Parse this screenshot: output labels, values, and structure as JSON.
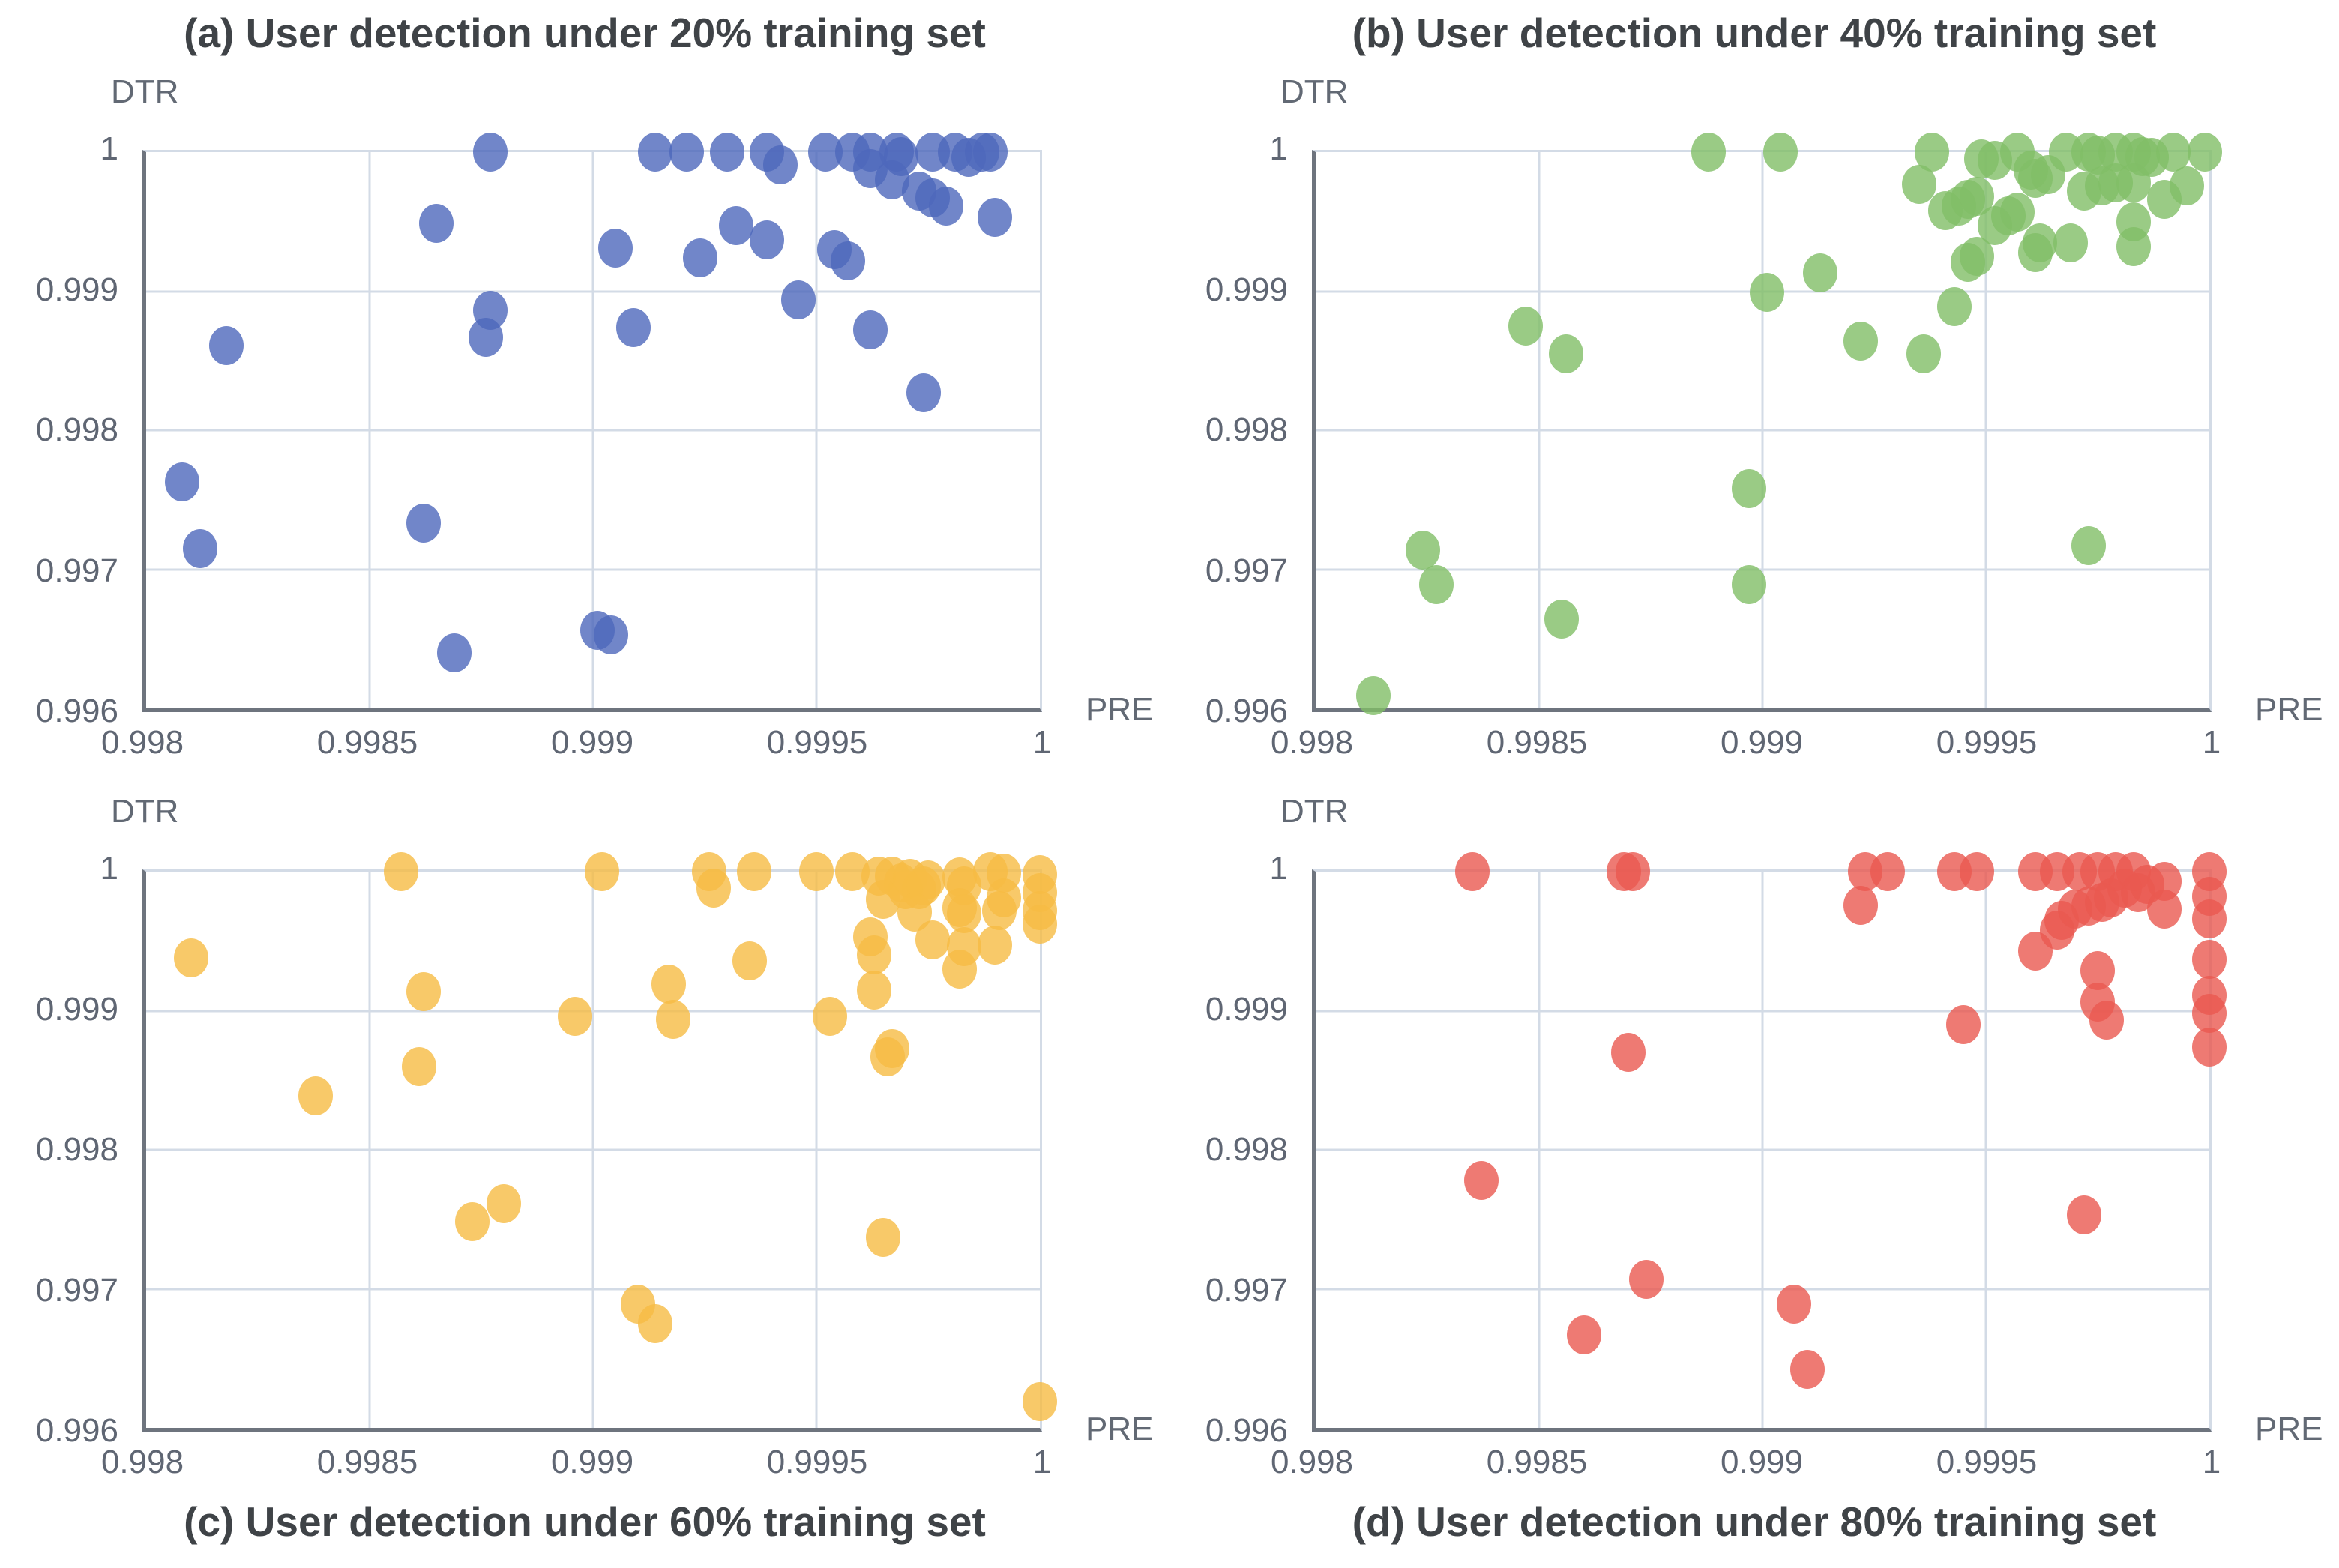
{
  "figure": {
    "background": "#FFFFFF",
    "styles": {
      "grid_color": "#D3DBE6",
      "axis_color": "#6E747E",
      "tick_text_color": "#5F6673",
      "title_text_color": "#3F4347",
      "axis_label_color": "#626974"
    }
  },
  "chart_data": [
    {
      "id": "a",
      "type": "scatter",
      "title": "(a) User detection under 20% training set",
      "xlabel": "PRE",
      "ylabel": "DTR",
      "xlim": [
        0.998,
        1.0
      ],
      "ylim": [
        0.996,
        1.0
      ],
      "x_ticks": [
        "0.998",
        "0.9985",
        "0.999",
        "0.9995",
        "1"
      ],
      "y_ticks": [
        "1",
        "0.999",
        "0.998",
        "0.997",
        "0.996"
      ],
      "grid": true,
      "legend": "none",
      "color": "#4D68BB",
      "points": [
        [
          0.99877,
          1.0
        ],
        [
          0.99914,
          1.0
        ],
        [
          0.99921,
          1.0
        ],
        [
          0.9993,
          1.0
        ],
        [
          0.99939,
          1.0
        ],
        [
          0.99952,
          1.0
        ],
        [
          0.99958,
          1.0
        ],
        [
          0.99962,
          1.0
        ],
        [
          0.99968,
          1.0
        ],
        [
          0.99976,
          1.0
        ],
        [
          0.99981,
          1.0
        ],
        [
          0.99987,
          1.0
        ],
        [
          0.99989,
          1.0
        ],
        [
          0.99942,
          0.99991
        ],
        [
          0.99969,
          0.99997
        ],
        [
          0.99984,
          0.99996
        ],
        [
          0.99962,
          0.99988
        ],
        [
          0.99967,
          0.9998
        ],
        [
          0.99973,
          0.99972
        ],
        [
          0.99976,
          0.99967
        ],
        [
          0.99979,
          0.99961
        ],
        [
          0.9999,
          0.99953
        ],
        [
          0.99865,
          0.99949
        ],
        [
          0.99905,
          0.99931
        ],
        [
          0.99924,
          0.99924
        ],
        [
          0.99932,
          0.99947
        ],
        [
          0.99939,
          0.99937
        ],
        [
          0.99954,
          0.9993
        ],
        [
          0.99957,
          0.99922
        ],
        [
          0.99946,
          0.99894
        ],
        [
          0.99877,
          0.99886
        ],
        [
          0.99876,
          0.99867
        ],
        [
          0.99909,
          0.99874
        ],
        [
          0.99962,
          0.99872
        ],
        [
          0.99818,
          0.99861
        ],
        [
          0.99974,
          0.99827
        ],
        [
          0.99808,
          0.99763
        ],
        [
          0.99862,
          0.99733
        ],
        [
          0.99812,
          0.99715
        ],
        [
          0.99901,
          0.99656
        ],
        [
          0.99904,
          0.99653
        ],
        [
          0.99869,
          0.9964
        ]
      ]
    },
    {
      "id": "b",
      "type": "scatter",
      "title": "(b) User detection under 40% training set",
      "xlabel": "PRE",
      "ylabel": "DTR",
      "xlim": [
        0.998,
        1.0
      ],
      "ylim": [
        0.996,
        1.0
      ],
      "x_ticks": [
        "0.998",
        "0.9985",
        "0.999",
        "0.9995",
        "1"
      ],
      "y_ticks": [
        "1",
        "0.999",
        "0.998",
        "0.997",
        "0.996"
      ],
      "grid": true,
      "legend": "none",
      "color": "#81BE67",
      "points": [
        [
          0.99888,
          1.0
        ],
        [
          0.99904,
          1.0
        ],
        [
          0.99938,
          1.0
        ],
        [
          0.99957,
          1.0
        ],
        [
          0.99968,
          1.0
        ],
        [
          0.99973,
          1.0
        ],
        [
          0.99979,
          1.0
        ],
        [
          0.99983,
          1.0
        ],
        [
          0.99992,
          1.0
        ],
        [
          0.99999,
          1.0
        ],
        [
          0.99949,
          0.99995
        ],
        [
          0.99952,
          0.99994
        ],
        [
          0.99975,
          0.99998
        ],
        [
          0.99985,
          0.99997
        ],
        [
          0.99987,
          0.99996
        ],
        [
          0.9996,
          0.99987
        ],
        [
          0.99961,
          0.99981
        ],
        [
          0.99964,
          0.99984
        ],
        [
          0.99972,
          0.99972
        ],
        [
          0.99976,
          0.99976
        ],
        [
          0.99979,
          0.99978
        ],
        [
          0.99983,
          0.99978
        ],
        [
          0.9999,
          0.99966
        ],
        [
          0.99995,
          0.99976
        ],
        [
          0.99946,
          0.99966
        ],
        [
          0.99948,
          0.99968
        ],
        [
          0.99957,
          0.99957
        ],
        [
          0.99952,
          0.99947
        ],
        [
          0.99955,
          0.99954
        ],
        [
          0.99948,
          0.99925
        ],
        [
          0.99962,
          0.99935
        ],
        [
          0.99961,
          0.99928
        ],
        [
          0.99969,
          0.99935
        ],
        [
          0.99983,
          0.9995
        ],
        [
          0.99983,
          0.99932
        ],
        [
          0.99935,
          0.99977
        ],
        [
          0.99941,
          0.99958
        ],
        [
          0.99944,
          0.99961
        ],
        [
          0.99946,
          0.99921
        ],
        [
          0.99913,
          0.99913
        ],
        [
          0.99901,
          0.99899
        ],
        [
          0.99943,
          0.99889
        ],
        [
          0.99847,
          0.99875
        ],
        [
          0.99856,
          0.99855
        ],
        [
          0.99922,
          0.99864
        ],
        [
          0.99936,
          0.99855
        ],
        [
          0.99897,
          0.99758
        ],
        [
          0.99824,
          0.99714
        ],
        [
          0.99827,
          0.99689
        ],
        [
          0.99897,
          0.99689
        ],
        [
          0.99855,
          0.99664
        ],
        [
          0.99973,
          0.99717
        ],
        [
          0.99813,
          0.99609
        ]
      ]
    },
    {
      "id": "c",
      "type": "scatter",
      "title": "(c) User detection under 60% training set",
      "xlabel": "PRE",
      "ylabel": "DTR",
      "xlim": [
        0.998,
        1.0
      ],
      "ylim": [
        0.996,
        1.0
      ],
      "x_ticks": [
        "0.998",
        "0.9985",
        "0.999",
        "0.9995",
        "1"
      ],
      "y_ticks": [
        "1",
        "0.999",
        "0.998",
        "0.997",
        "0.996"
      ],
      "grid": true,
      "legend": "none",
      "color": "#F6BC44",
      "points": [
        [
          0.99857,
          1.0
        ],
        [
          0.99902,
          1.0
        ],
        [
          0.99926,
          1.0
        ],
        [
          0.99936,
          1.0
        ],
        [
          0.9995,
          1.0
        ],
        [
          0.99958,
          1.0
        ],
        [
          0.99964,
          0.99997
        ],
        [
          0.99967,
          0.99997
        ],
        [
          0.99971,
          0.99995
        ],
        [
          0.99975,
          0.99994
        ],
        [
          0.99982,
          0.99996
        ],
        [
          0.99989,
          1.0
        ],
        [
          0.99992,
          0.99999
        ],
        [
          1.0,
          0.99998
        ],
        [
          0.99927,
          0.99988
        ],
        [
          0.99969,
          0.99992
        ],
        [
          0.9997,
          0.99987
        ],
        [
          0.99973,
          0.99987
        ],
        [
          0.99974,
          0.9999
        ],
        [
          0.99983,
          0.9999
        ],
        [
          1.0,
          0.99985
        ],
        [
          0.99965,
          0.9998
        ],
        [
          0.99972,
          0.99971
        ],
        [
          0.99982,
          0.99974
        ],
        [
          0.99983,
          0.9997
        ],
        [
          0.99992,
          0.99981
        ],
        [
          0.99991,
          0.99972
        ],
        [
          1.0,
          0.99972
        ],
        [
          1.0,
          0.99962
        ],
        [
          0.99962,
          0.99953
        ],
        [
          0.99963,
          0.9994
        ],
        [
          0.99976,
          0.99951
        ],
        [
          0.99983,
          0.99946
        ],
        [
          0.9999,
          0.99947
        ],
        [
          0.99982,
          0.9993
        ],
        [
          0.99963,
          0.99915
        ],
        [
          0.9981,
          0.99938
        ],
        [
          0.99935,
          0.99936
        ],
        [
          0.99917,
          0.99919
        ],
        [
          0.99862,
          0.99914
        ],
        [
          0.99896,
          0.99896
        ],
        [
          0.99918,
          0.99894
        ],
        [
          0.99953,
          0.99896
        ],
        [
          0.99967,
          0.99873
        ],
        [
          0.99966,
          0.99867
        ],
        [
          0.99861,
          0.9986
        ],
        [
          0.99838,
          0.99839
        ],
        [
          0.9988,
          0.99761
        ],
        [
          0.99873,
          0.99748
        ],
        [
          0.99965,
          0.99737
        ],
        [
          0.9991,
          0.99689
        ],
        [
          0.99914,
          0.99675
        ],
        [
          1.0,
          0.99619
        ]
      ]
    },
    {
      "id": "d",
      "type": "scatter",
      "title": "(d) User detection under 80% training set",
      "xlabel": "PRE",
      "ylabel": "DTR",
      "xlim": [
        0.998,
        1.0
      ],
      "ylim": [
        0.996,
        1.0
      ],
      "x_ticks": [
        "0.998",
        "0.9985",
        "0.999",
        "0.9995",
        "1"
      ],
      "y_ticks": [
        "1",
        "0.999",
        "0.998",
        "0.997",
        "0.996"
      ],
      "grid": true,
      "legend": "none",
      "color": "#EA5950",
      "points": [
        [
          0.99835,
          1.0
        ],
        [
          0.99869,
          1.0
        ],
        [
          0.99871,
          1.0
        ],
        [
          0.99923,
          1.0
        ],
        [
          0.99928,
          1.0
        ],
        [
          0.99943,
          1.0
        ],
        [
          0.99948,
          1.0
        ],
        [
          0.99961,
          1.0
        ],
        [
          0.99966,
          1.0
        ],
        [
          0.99971,
          1.0
        ],
        [
          0.99975,
          1.0
        ],
        [
          0.99979,
          1.0
        ],
        [
          0.99983,
          1.0
        ],
        [
          1.0,
          1.0
        ],
        [
          0.9999,
          0.99993
        ],
        [
          0.99986,
          0.99991
        ],
        [
          0.99984,
          0.99985
        ],
        [
          0.99981,
          0.99988
        ],
        [
          0.99978,
          0.99981
        ],
        [
          0.99976,
          0.99978
        ],
        [
          0.99973,
          0.99975
        ],
        [
          0.9997,
          0.99973
        ],
        [
          0.99967,
          0.99965
        ],
        [
          0.99966,
          0.99958
        ],
        [
          0.99961,
          0.99943
        ],
        [
          0.99922,
          0.99976
        ],
        [
          0.9999,
          0.99973
        ],
        [
          1.0,
          0.99982
        ],
        [
          1.0,
          0.99966
        ],
        [
          1.0,
          0.99937
        ],
        [
          1.0,
          0.99911
        ],
        [
          1.0,
          0.99898
        ],
        [
          1.0,
          0.99874
        ],
        [
          0.99975,
          0.99929
        ],
        [
          0.99975,
          0.99906
        ],
        [
          0.99977,
          0.99893
        ],
        [
          0.99945,
          0.9989
        ],
        [
          0.9987,
          0.9987
        ],
        [
          0.99837,
          0.99778
        ],
        [
          0.99972,
          0.99753
        ],
        [
          0.99874,
          0.99707
        ],
        [
          0.99907,
          0.99689
        ],
        [
          0.9986,
          0.99667
        ],
        [
          0.9991,
          0.99642
        ]
      ]
    }
  ]
}
